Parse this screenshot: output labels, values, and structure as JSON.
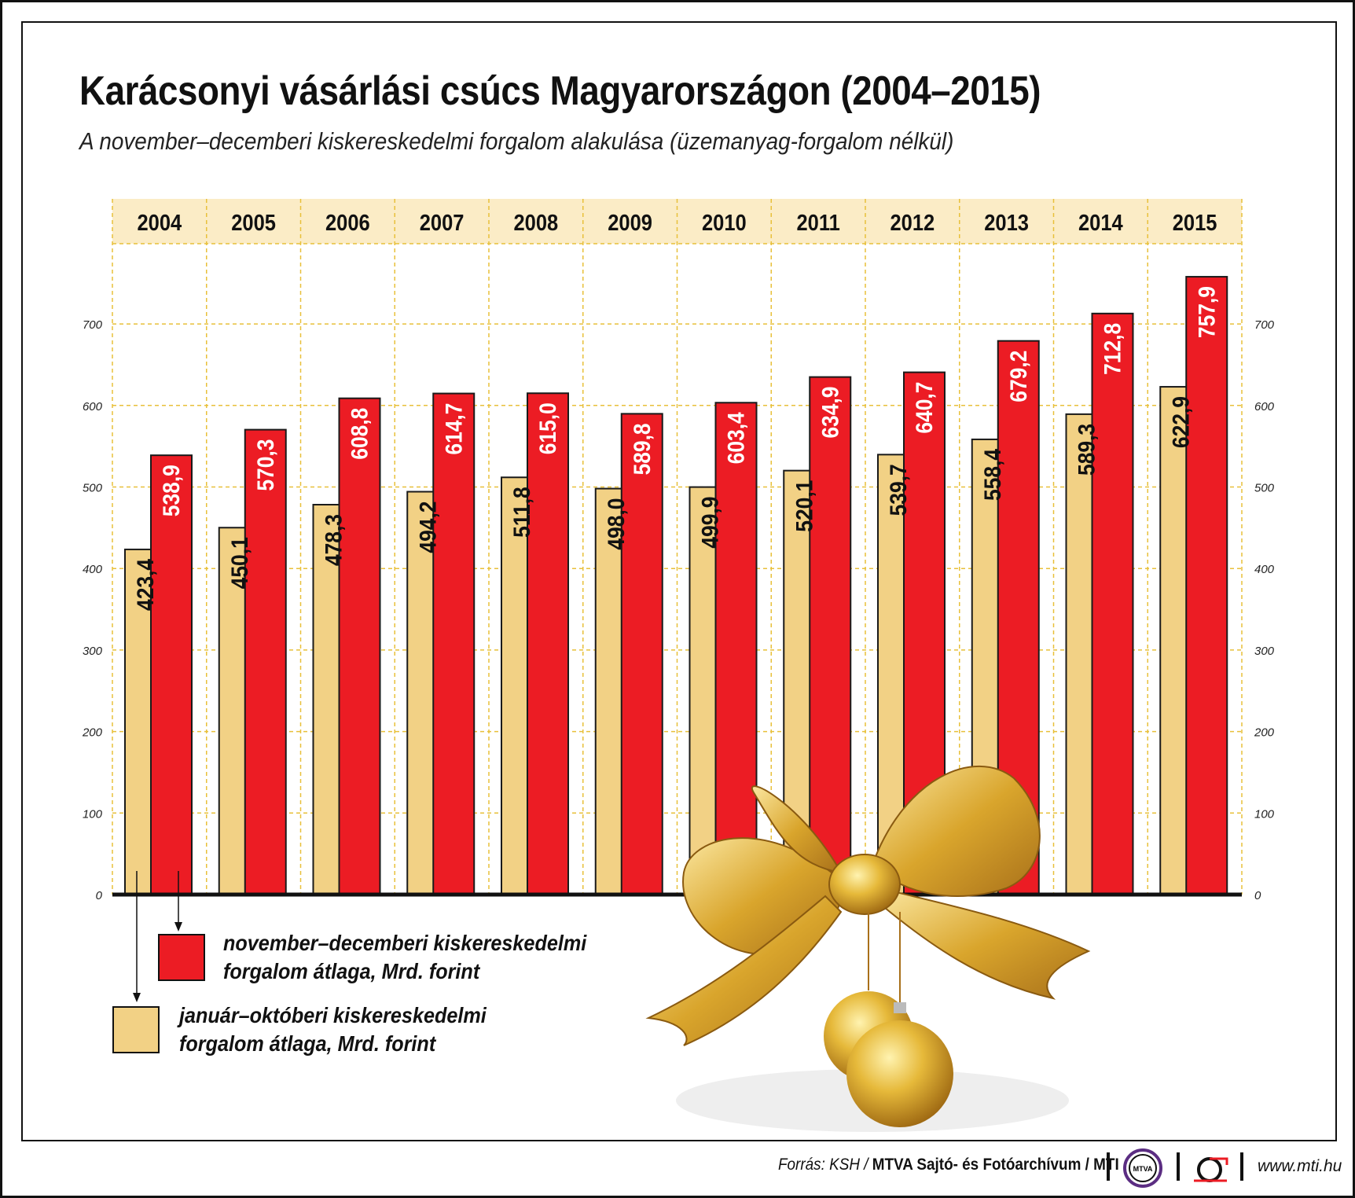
{
  "title": "Karácsonyi vásárlási csúcs Magyarországon (2004–2015)",
  "subtitle": "A november–decemberi kiskereskedelmi forgalom alakulása (üzemanyag-forgalom nélkül)",
  "chart_data": {
    "type": "bar",
    "categories": [
      "2004",
      "2005",
      "2006",
      "2007",
      "2008",
      "2009",
      "2010",
      "2011",
      "2012",
      "2013",
      "2014",
      "2015"
    ],
    "series": [
      {
        "name": "január–októberi kiskereskedelmi forgalom átlaga, Mrd. forint",
        "color": "#f2d185",
        "values": [
          423.4,
          450.1,
          478.3,
          494.2,
          511.8,
          498.0,
          499.9,
          520.1,
          539.7,
          558.4,
          589.3,
          622.9
        ],
        "labels": [
          "423,4",
          "450,1",
          "478,3",
          "494,2",
          "511,8",
          "498,0",
          "499,9",
          "520,1",
          "539,7",
          "558,4",
          "589,3",
          "622,9"
        ]
      },
      {
        "name": "november–decemberi kiskereskedelmi forgalom átlaga, Mrd. forint",
        "color": "#ec1c24",
        "values": [
          538.9,
          570.3,
          608.8,
          614.7,
          615.0,
          589.8,
          603.4,
          634.9,
          640.7,
          679.2,
          712.8,
          757.9
        ],
        "labels": [
          "538,9",
          "570,3",
          "608,8",
          "614,7",
          "615,0",
          "589,8",
          "603,4",
          "634,9",
          "640,7",
          "679,2",
          "712,8",
          "757,9"
        ]
      }
    ],
    "yticks": [
      "0",
      "100",
      "200",
      "300",
      "400",
      "500",
      "600",
      "700"
    ],
    "ylim": [
      0,
      800
    ],
    "grid": true,
    "legend_position": "bottom-left"
  },
  "legend": {
    "red_line1": "november–decemberi kiskereskedelmi",
    "red_line2": "forgalom átlaga, Mrd. forint",
    "beige_line1": "január–októberi kiskereskedelmi",
    "beige_line2": "forgalom átlaga, Mrd. forint"
  },
  "footer": {
    "source_prefix": "Forrás: KSH / ",
    "source_bold": "MTVA Sajtó- és Fotóarchívum / MTI",
    "mtva_logo": "MTVA",
    "url": "www.mti.hu"
  }
}
